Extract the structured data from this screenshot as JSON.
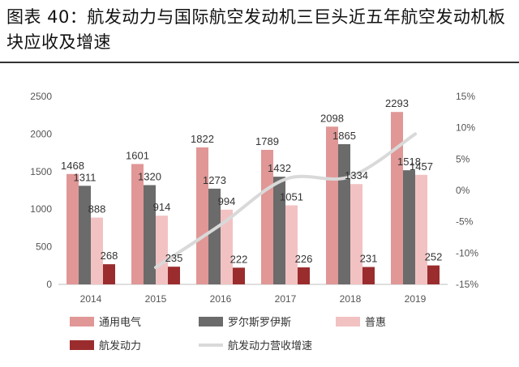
{
  "header": {
    "title": "图表 40：航发动力与国际航空发动机三巨头近五年航空发动机板块应收及增速"
  },
  "chart_data": {
    "type": "bar",
    "title": "图表 40：航发动力与国际航空发动机三巨头近五年航空发动机板块应收及增速",
    "categories": [
      "2014",
      "2015",
      "2016",
      "2017",
      "2018",
      "2019"
    ],
    "series": [
      {
        "name": "通用电气",
        "values": [
          1468,
          1601,
          1822,
          1789,
          2098,
          2293
        ],
        "color": "#E09796"
      },
      {
        "name": "罗尔斯罗伊斯",
        "values": [
          1311,
          1320,
          1273,
          1432,
          1865,
          1518
        ],
        "color": "#6B6B6B"
      },
      {
        "name": "普惠",
        "values": [
          888,
          914,
          994,
          1051,
          1334,
          1457
        ],
        "color": "#F2C2C2"
      },
      {
        "name": "航发动力",
        "values": [
          268,
          235,
          222,
          226,
          231,
          252
        ],
        "color": "#9B2C2E"
      }
    ],
    "line_series": {
      "name": "航发动力营收增速",
      "axis": "right",
      "x": [
        "2015",
        "2016",
        "2017",
        "2018",
        "2019"
      ],
      "values": [
        -12.3,
        -5.5,
        1.8,
        2.2,
        9.0
      ],
      "color": "#D9D9D9"
    },
    "ylim": [
      0,
      2500
    ],
    "yticks": [
      "0",
      "500",
      "1000",
      "1500",
      "2000",
      "2500"
    ],
    "y2lim": [
      -15,
      15
    ],
    "y2ticks": [
      "-15%",
      "-10%",
      "-5%",
      "0%",
      "5%",
      "10%",
      "15%"
    ],
    "legend_position": "bottom",
    "grid": false
  }
}
